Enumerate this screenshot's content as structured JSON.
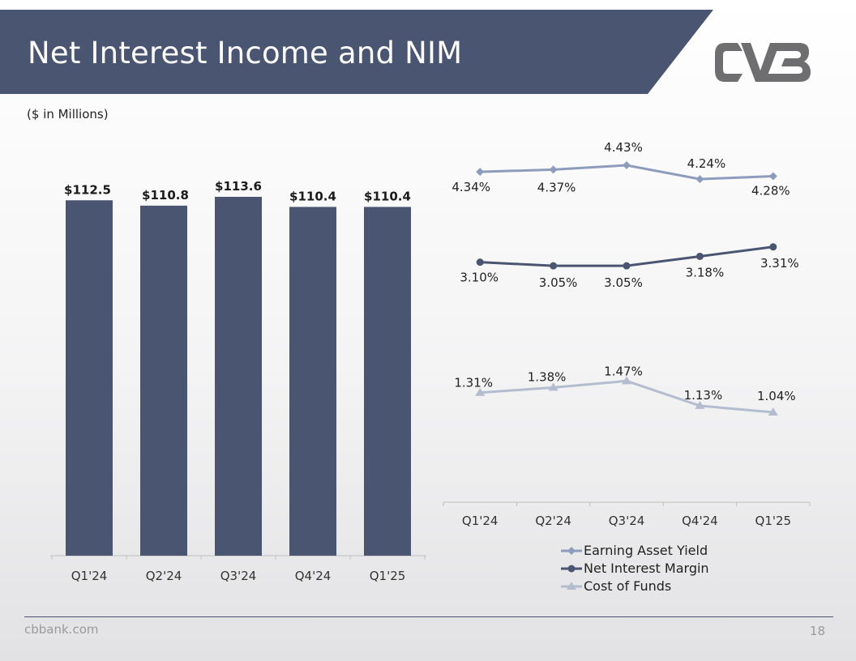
{
  "slide": {
    "title": "Net Interest Income and NIM",
    "units_note": "($ in Millions)",
    "footer_url": "cbbank.com",
    "page_number": "18",
    "logo_alt": "CVB"
  },
  "colors": {
    "header_band": "#4a5571",
    "bar": "#4a5571",
    "earning_asset_yield": "#8e9cbc",
    "net_interest_margin": "#4a5571",
    "cost_of_funds": "#b4bccf",
    "logo": "#6e6e70"
  },
  "chart_data": [
    {
      "type": "bar",
      "title": "Net Interest Income",
      "categories": [
        "Q1'24",
        "Q2'24",
        "Q3'24",
        "Q4'24",
        "Q1'25"
      ],
      "values": [
        112.5,
        110.8,
        113.6,
        110.4,
        110.4
      ],
      "data_labels": [
        "$112.5",
        "$110.8",
        "$113.6",
        "$110.4",
        "$110.4"
      ],
      "xlabel": "",
      "ylabel": "",
      "grid": false
    },
    {
      "type": "line",
      "title": "NIM",
      "categories": [
        "Q1'24",
        "Q2'24",
        "Q3'24",
        "Q4'24",
        "Q1'25"
      ],
      "series": [
        {
          "name": "Earning Asset Yield",
          "marker": "diamond",
          "values": [
            4.34,
            4.37,
            4.43,
            4.24,
            4.28
          ],
          "labels": [
            "4.34%",
            "4.37%",
            "4.43%",
            "4.24%",
            "4.28%"
          ]
        },
        {
          "name": "Net Interest Margin",
          "marker": "circle",
          "values": [
            3.1,
            3.05,
            3.05,
            3.18,
            3.31
          ],
          "labels": [
            "3.10%",
            "3.05%",
            "3.05%",
            "3.18%",
            "3.31%"
          ]
        },
        {
          "name": "Cost of Funds",
          "marker": "triangle",
          "values": [
            1.31,
            1.38,
            1.47,
            1.13,
            1.04
          ],
          "labels": [
            "1.31%",
            "1.38%",
            "1.47%",
            "1.13%",
            "1.04%"
          ]
        }
      ],
      "legend": "bottom",
      "grid": false
    }
  ]
}
